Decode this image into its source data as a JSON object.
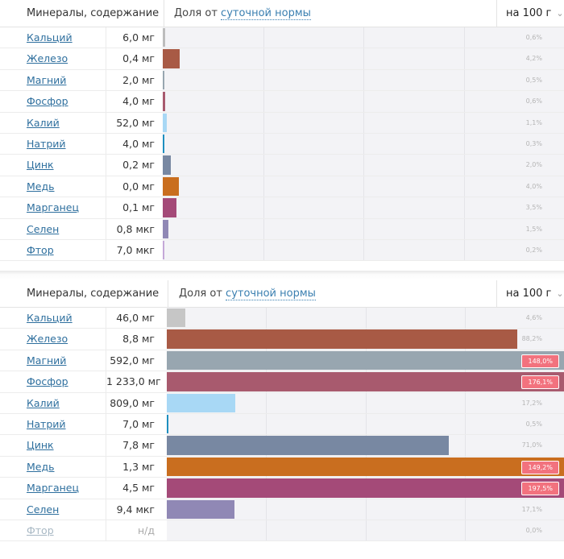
{
  "sections": [
    {
      "header": {
        "title": "Минералы, содержание",
        "share_prefix": "Доля от",
        "share_link": "суточной нормы",
        "per": "на 100 г"
      },
      "items": [
        {
          "name": "Кальций",
          "amount": "6,0 мг",
          "pct_label": "0,6%",
          "pct": 0.6,
          "color": "#bdbdbd"
        },
        {
          "name": "Железо",
          "amount": "0,4 мг",
          "pct_label": "4,2%",
          "pct": 4.2,
          "color": "#a85a45"
        },
        {
          "name": "Магний",
          "amount": "2,0 мг",
          "pct_label": "0,5%",
          "pct": 0.5,
          "color": "#98a6b0"
        },
        {
          "name": "Фосфор",
          "amount": "4,0 мг",
          "pct_label": "0,6%",
          "pct": 0.6,
          "color": "#a85a6e"
        },
        {
          "name": "Калий",
          "amount": "52,0 мг",
          "pct_label": "1,1%",
          "pct": 1.1,
          "color": "#a8d8f5"
        },
        {
          "name": "Натрий",
          "amount": "4,0 мг",
          "pct_label": "0,3%",
          "pct": 0.3,
          "color": "#1e8fc0"
        },
        {
          "name": "Цинк",
          "amount": "0,2 мг",
          "pct_label": "2,0%",
          "pct": 2.0,
          "color": "#7888a2"
        },
        {
          "name": "Медь",
          "amount": "0,0 мг",
          "pct_label": "4,0%",
          "pct": 4.0,
          "color": "#c96e1f"
        },
        {
          "name": "Марганец",
          "amount": "0,1 мг",
          "pct_label": "3,5%",
          "pct": 3.5,
          "color": "#a44a78"
        },
        {
          "name": "Селен",
          "amount": "0,8 мкг",
          "pct_label": "1,5%",
          "pct": 1.5,
          "color": "#9088b5"
        },
        {
          "name": "Фтор",
          "amount": "7,0 мкг",
          "pct_label": "0,2%",
          "pct": 0.2,
          "color": "#c4a8d8"
        }
      ]
    },
    {
      "header": {
        "title": "Минералы, содержание",
        "share_prefix": "Доля от",
        "share_link": "суточной нормы",
        "per": "на 100 г"
      },
      "items": [
        {
          "name": "Кальций",
          "amount": "46,0 мг",
          "pct_label": "4,6%",
          "pct": 4.6,
          "color": "#c6c6c6"
        },
        {
          "name": "Железо",
          "amount": "8,8 мг",
          "pct_label": "88,2%",
          "pct": 88.2,
          "color": "#a85a45"
        },
        {
          "name": "Магний",
          "amount": "592,0 мг",
          "pct_label": "148,0%",
          "pct": 148.0,
          "color": "#98a6b0"
        },
        {
          "name": "Фосфор",
          "amount": "1 233,0 мг",
          "pct_label": "176,1%",
          "pct": 176.1,
          "color": "#a85a6e"
        },
        {
          "name": "Калий",
          "amount": "809,0 мг",
          "pct_label": "17,2%",
          "pct": 17.2,
          "color": "#a8d8f5"
        },
        {
          "name": "Натрий",
          "amount": "7,0 мг",
          "pct_label": "0,5%",
          "pct": 0.5,
          "color": "#1e8fc0"
        },
        {
          "name": "Цинк",
          "amount": "7,8 мг",
          "pct_label": "71,0%",
          "pct": 71.0,
          "color": "#7888a2"
        },
        {
          "name": "Медь",
          "amount": "1,3 мг",
          "pct_label": "149,2%",
          "pct": 149.2,
          "color": "#c96e1f"
        },
        {
          "name": "Марганец",
          "amount": "4,5 мг",
          "pct_label": "197,5%",
          "pct": 197.5,
          "color": "#a44a78"
        },
        {
          "name": "Селен",
          "amount": "9,4 мкг",
          "pct_label": "17,1%",
          "pct": 17.1,
          "color": "#9088b5"
        },
        {
          "name": "Фтор",
          "amount": "н/д",
          "pct_label": "0,0%",
          "pct": 0.0,
          "color": "#c4a8d8",
          "na": true
        }
      ]
    }
  ]
}
